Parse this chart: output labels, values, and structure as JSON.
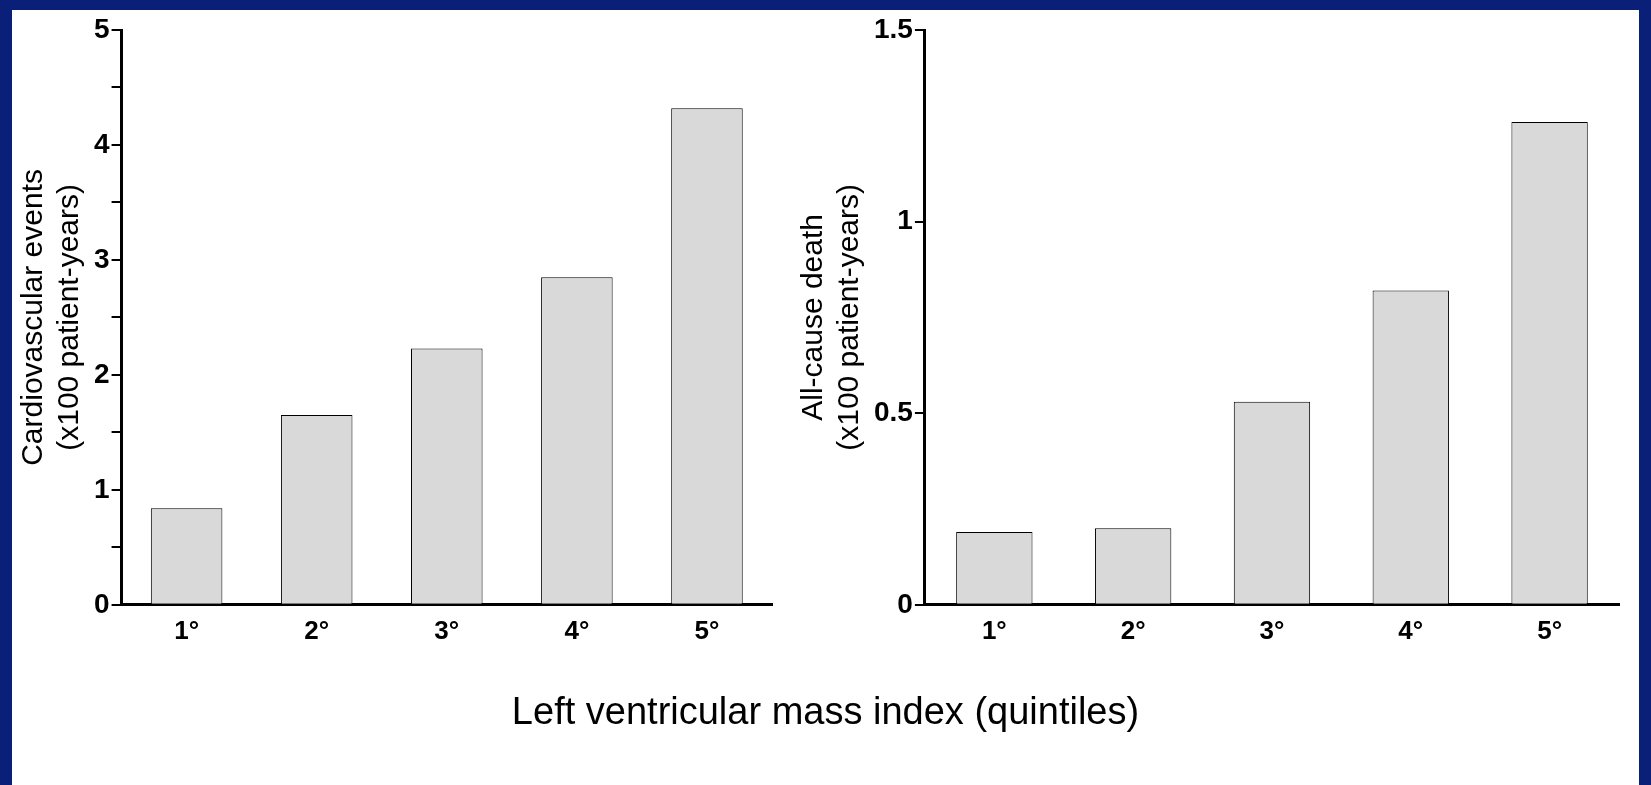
{
  "chart_data": [
    {
      "type": "bar",
      "ylabel": "Cardiovascular events\n(x100 patient-years)",
      "categories": [
        "1°",
        "2°",
        "3°",
        "4°",
        "5°"
      ],
      "values": [
        0.84,
        1.65,
        2.23,
        2.85,
        4.32
      ],
      "color": "#d9d9d9",
      "ylim": [
        0,
        5
      ],
      "yticks": [
        0,
        {
          "value": 0.5,
          "label": null
        },
        1,
        {
          "value": 1.5,
          "label": null
        },
        2,
        {
          "value": 2.5,
          "label": null
        },
        3,
        {
          "value": 3.5,
          "label": null
        },
        4,
        {
          "value": 4.5,
          "label": null
        },
        5
      ],
      "grid": false
    },
    {
      "type": "bar",
      "ylabel": "All-cause death\n(x100 patient-years)",
      "categories": [
        "1°",
        "2°",
        "3°",
        "4°",
        "5°"
      ],
      "values": [
        0.19,
        0.2,
        0.53,
        0.82,
        1.26
      ],
      "color": "#d9d9d9",
      "ylim": [
        0,
        1.5
      ],
      "yticks": [
        0,
        0.5,
        1,
        1.5
      ],
      "grid": false,
      "annotations": [
        "Left ventricular mass index (quintiles)"
      ]
    }
  ]
}
